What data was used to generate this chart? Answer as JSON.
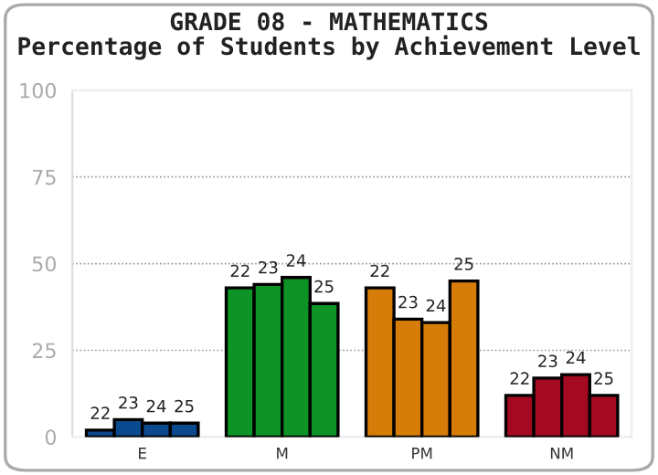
{
  "chart_data": {
    "type": "bar",
    "title": "GRADE 08 - MATHEMATICS\nPercentage of Students by Achievement Level",
    "categories": [
      "E",
      "M",
      "PM",
      "NM"
    ],
    "series": [
      {
        "name": "22",
        "colors": [
          "#0b4a8e",
          "#0e9426",
          "#d67c08",
          "#a30a22"
        ],
        "values": [
          2,
          43,
          43,
          12
        ]
      },
      {
        "name": "23",
        "colors": [
          "#0b4a8e",
          "#0e9426",
          "#d67c08",
          "#a30a22"
        ],
        "values": [
          5,
          44,
          34,
          17
        ]
      },
      {
        "name": "24",
        "colors": [
          "#0b4a8e",
          "#0e9426",
          "#d67c08",
          "#a30a22"
        ],
        "values": [
          4,
          46,
          33,
          18
        ]
      },
      {
        "name": "25",
        "colors": [
          "#0b4a8e",
          "#0e9426",
          "#d67c08",
          "#a30a22"
        ],
        "values": [
          4,
          38.5,
          45,
          12
        ]
      }
    ],
    "ylim": [
      0,
      100
    ],
    "yticks": [
      0,
      25,
      50,
      75,
      100
    ],
    "grid": "y",
    "legend": false
  }
}
